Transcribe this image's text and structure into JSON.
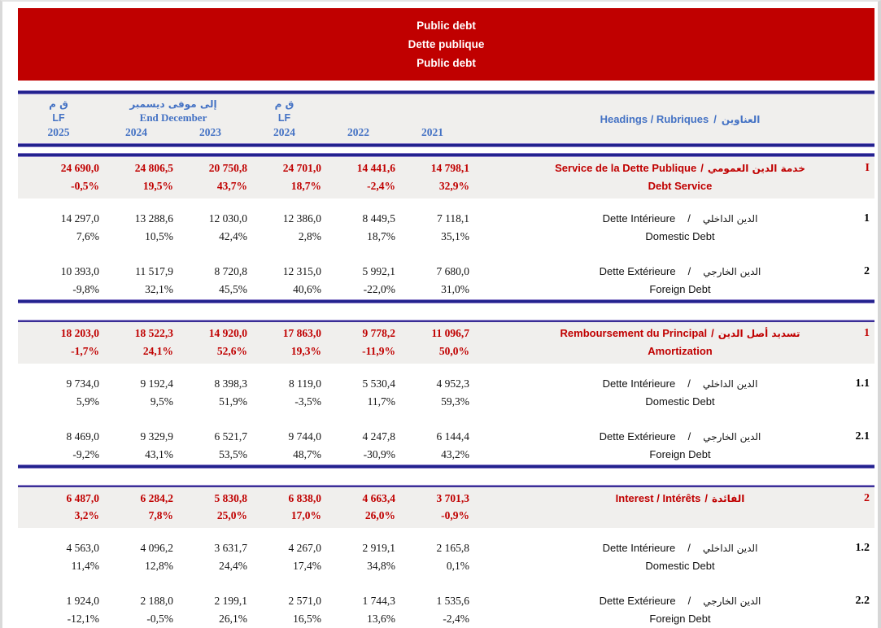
{
  "ui": {
    "slash": "/"
  },
  "colors": {
    "banner_bg": "#C00000",
    "accent_red": "#C00000",
    "header_blue": "#4472C4",
    "rule_navy": "#22228E",
    "band_gray": "#F0EFED"
  },
  "banner": {
    "lines": [
      "Public debt",
      "Dette publique",
      "Public debt"
    ]
  },
  "header": {
    "lf2025": {
      "ar": "ق م",
      "latin": "LF",
      "year": "2025"
    },
    "end_december": {
      "ar": "إلى موفى ديسمبر",
      "latin": "End December",
      "years": [
        "2024",
        "2023"
      ]
    },
    "lf2024": {
      "ar": "ق م",
      "latin": "LF",
      "year": "2024"
    },
    "year2022": "2022",
    "year2021": "2021",
    "headings": {
      "latin": "Headings / Rubriques ",
      "ar": "العناوين"
    }
  },
  "sections": [
    {
      "num": "I",
      "latin": "Service de la Dette Publique ",
      "ar": "خدمة الدين العمومي",
      "en": "Debt Service",
      "values": [
        "24 690,0",
        "24 806,5",
        "20 750,8",
        "24 701,0",
        "14 441,6",
        "14 798,1"
      ],
      "pcts": [
        "-0,5%",
        "19,5%",
        "43,7%",
        "18,7%",
        "-2,4%",
        "32,9%"
      ],
      "rows": [
        {
          "num": "1",
          "latin": "Dette Intérieure",
          "ar": "الدين الداخلي",
          "en": "Domestic Debt",
          "values": [
            "14 297,0",
            "13 288,6",
            "12 030,0",
            "12 386,0",
            "8 449,5",
            "7 118,1"
          ],
          "pcts": [
            "7,6%",
            "10,5%",
            "42,4%",
            "2,8%",
            "18,7%",
            "35,1%"
          ]
        },
        {
          "num": "2",
          "latin": "Dette Extérieure",
          "ar": "الدين الخارجي",
          "en": "Foreign Debt",
          "values": [
            "10 393,0",
            "11 517,9",
            "8 720,8",
            "12 315,0",
            "5 992,1",
            "7 680,0"
          ],
          "pcts": [
            "-9,8%",
            "32,1%",
            "45,5%",
            "40,6%",
            "-22,0%",
            "31,0%"
          ]
        }
      ]
    },
    {
      "num": "1",
      "latin": "Remboursement du Principal ",
      "ar": "تسديد أصل الدين",
      "en": "Amortization",
      "values": [
        "18 203,0",
        "18 522,3",
        "14 920,0",
        "17 863,0",
        "9 778,2",
        "11 096,7"
      ],
      "pcts": [
        "-1,7%",
        "24,1%",
        "52,6%",
        "19,3%",
        "-11,9%",
        "50,0%"
      ],
      "rows": [
        {
          "num": "1.1",
          "latin": "Dette Intérieure",
          "ar": "الدين الداخلي",
          "en": "Domestic Debt",
          "values": [
            "9 734,0",
            "9 192,4",
            "8 398,3",
            "8 119,0",
            "5 530,4",
            "4 952,3"
          ],
          "pcts": [
            "5,9%",
            "9,5%",
            "51,9%",
            "-3,5%",
            "11,7%",
            "59,3%"
          ]
        },
        {
          "num": "2.1",
          "latin": "Dette Extérieure",
          "ar": "الدين الخارجي",
          "en": "Foreign Debt",
          "values": [
            "8 469,0",
            "9 329,9",
            "6 521,7",
            "9 744,0",
            "4 247,8",
            "6 144,4"
          ],
          "pcts": [
            "-9,2%",
            "43,1%",
            "53,5%",
            "48,7%",
            "-30,9%",
            "43,2%"
          ]
        }
      ]
    },
    {
      "num": "2",
      "latin": "Interest /  Intérêts ",
      "ar": "الفائدة",
      "en": "",
      "values": [
        "6 487,0",
        "6 284,2",
        "5 830,8",
        "6 838,0",
        "4 663,4",
        "3 701,3"
      ],
      "pcts": [
        "3,2%",
        "7,8%",
        "25,0%",
        "17,0%",
        "26,0%",
        "-0,9%"
      ],
      "rows": [
        {
          "num": "1.2",
          "latin": "Dette Intérieure",
          "ar": "الدين الداخلي",
          "en": "Domestic Debt",
          "values": [
            "4 563,0",
            "4 096,2",
            "3 631,7",
            "4 267,0",
            "2 919,1",
            "2 165,8"
          ],
          "pcts": [
            "11,4%",
            "12,8%",
            "24,4%",
            "17,4%",
            "34,8%",
            "0,1%"
          ]
        },
        {
          "num": "2.2",
          "latin": "Dette Extérieure",
          "ar": "الدين الخارجي",
          "en": "Foreign Debt",
          "values": [
            "1 924,0",
            "2 188,0",
            "2 199,1",
            "2 571,0",
            "1 744,3",
            "1 535,6"
          ],
          "pcts": [
            "-12,1%",
            "-0,5%",
            "26,1%",
            "16,5%",
            "13,6%",
            "-2,4%"
          ]
        }
      ]
    }
  ]
}
